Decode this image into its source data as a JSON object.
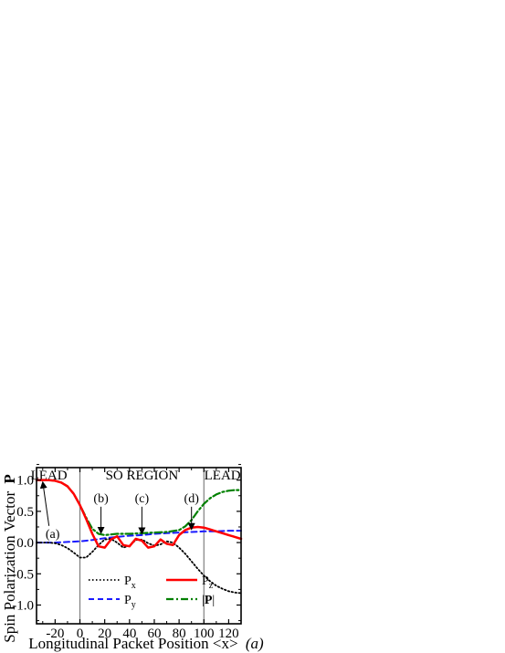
{
  "chart_data": {
    "type": "line",
    "xlabel": "Longitudinal Packet Position <x>",
    "xlabel_unit": "(a)",
    "ylabel": "Spin Polarization Vector",
    "ylabel_bold": "P",
    "xlim": [
      -35,
      130
    ],
    "ylim": [
      -1.3,
      1.2
    ],
    "x_ticks": [
      -20,
      0,
      20,
      40,
      60,
      80,
      100,
      120
    ],
    "x_tick_labels": [
      "-20",
      "0",
      "20",
      "40",
      "60",
      "80",
      "100",
      "120"
    ],
    "y_ticks": [
      1.0,
      0.5,
      0.0,
      -0.5,
      -1.0
    ],
    "y_tick_labels": [
      "1.0",
      "0.5",
      "0.0",
      "-0.5",
      "-1.0"
    ],
    "grid": false,
    "region_boundaries": [
      0,
      100
    ],
    "region_labels": [
      {
        "text": "LEAD",
        "x": -25,
        "y": 1.08
      },
      {
        "text": "SO REGION",
        "x": 50,
        "y": 1.08
      },
      {
        "text": "LEAD",
        "x": 115,
        "y": 1.08
      }
    ],
    "annotations": [
      {
        "text": "(a)",
        "label_x": -22,
        "label_y": 0.15,
        "arrow_to_x": -30,
        "arrow_to_y": 0.97
      },
      {
        "text": "(b)",
        "label_x": 17,
        "label_y": 0.72,
        "arrow_to_x": 17,
        "arrow_to_y": 0.15
      },
      {
        "text": "(c)",
        "label_x": 50,
        "label_y": 0.72,
        "arrow_to_x": 50,
        "arrow_to_y": 0.14
      },
      {
        "text": "(d)",
        "label_x": 90,
        "label_y": 0.72,
        "arrow_to_x": 90,
        "arrow_to_y": 0.21
      }
    ],
    "legend_position": "bottom-center",
    "series": [
      {
        "name": "P",
        "subscript": "x",
        "color": "#000000",
        "dash": "1.5,2.5",
        "width": 1.8,
        "x": [
          -35,
          -30,
          -25,
          -20,
          -15,
          -10,
          -5,
          0,
          5,
          10,
          15,
          20,
          25,
          30,
          35,
          40,
          45,
          50,
          55,
          60,
          65,
          70,
          75,
          80,
          85,
          90,
          95,
          100,
          105,
          110,
          115,
          120,
          125,
          130
        ],
        "y": [
          0.0,
          0.0,
          0.0,
          -0.01,
          -0.04,
          -0.09,
          -0.16,
          -0.24,
          -0.24,
          -0.15,
          -0.04,
          0.05,
          0.06,
          0.0,
          -0.08,
          -0.05,
          0.04,
          0.05,
          -0.01,
          -0.05,
          -0.03,
          0.02,
          0.0,
          -0.08,
          -0.18,
          -0.3,
          -0.42,
          -0.53,
          -0.62,
          -0.69,
          -0.74,
          -0.78,
          -0.8,
          -0.81
        ]
      },
      {
        "name": "P",
        "subscript": "y",
        "color": "#1a1aff",
        "dash": "6,4",
        "width": 2,
        "x": [
          -35,
          -20,
          -10,
          0,
          10,
          20,
          30,
          40,
          50,
          60,
          70,
          80,
          90,
          100,
          110,
          120,
          130
        ],
        "y": [
          0.0,
          0.0,
          0.01,
          0.02,
          0.04,
          0.07,
          0.09,
          0.11,
          0.12,
          0.14,
          0.15,
          0.16,
          0.17,
          0.18,
          0.18,
          0.19,
          0.19
        ]
      },
      {
        "name": "P",
        "subscript": "z",
        "color": "#ff0000",
        "dash": "",
        "width": 2.5,
        "x": [
          -35,
          -30,
          -25,
          -20,
          -15,
          -10,
          -5,
          0,
          5,
          10,
          15,
          20,
          25,
          30,
          35,
          40,
          45,
          50,
          55,
          60,
          65,
          70,
          75,
          80,
          85,
          90,
          95,
          100,
          105,
          110,
          115,
          120,
          125,
          130
        ],
        "y": [
          1.0,
          1.0,
          1.0,
          0.99,
          0.96,
          0.9,
          0.78,
          0.6,
          0.38,
          0.14,
          -0.06,
          -0.08,
          0.05,
          0.1,
          -0.04,
          -0.06,
          0.06,
          0.03,
          -0.08,
          -0.06,
          0.05,
          -0.02,
          -0.04,
          0.12,
          0.2,
          0.24,
          0.25,
          0.24,
          0.21,
          0.18,
          0.15,
          0.12,
          0.09,
          0.06
        ]
      },
      {
        "name": "|P|",
        "color": "#008000",
        "dash": "8,3,2,3",
        "width": 2.2,
        "x": [
          -35,
          -30,
          -25,
          -20,
          -15,
          -10,
          -5,
          0,
          5,
          10,
          15,
          20,
          25,
          30,
          40,
          50,
          60,
          70,
          80,
          85,
          90,
          95,
          100,
          105,
          110,
          115,
          120,
          125,
          130
        ],
        "y": [
          1.0,
          1.0,
          1.0,
          0.99,
          0.96,
          0.9,
          0.78,
          0.6,
          0.4,
          0.22,
          0.14,
          0.12,
          0.13,
          0.14,
          0.14,
          0.15,
          0.16,
          0.17,
          0.2,
          0.26,
          0.36,
          0.5,
          0.62,
          0.71,
          0.77,
          0.81,
          0.83,
          0.84,
          0.84
        ]
      }
    ]
  }
}
